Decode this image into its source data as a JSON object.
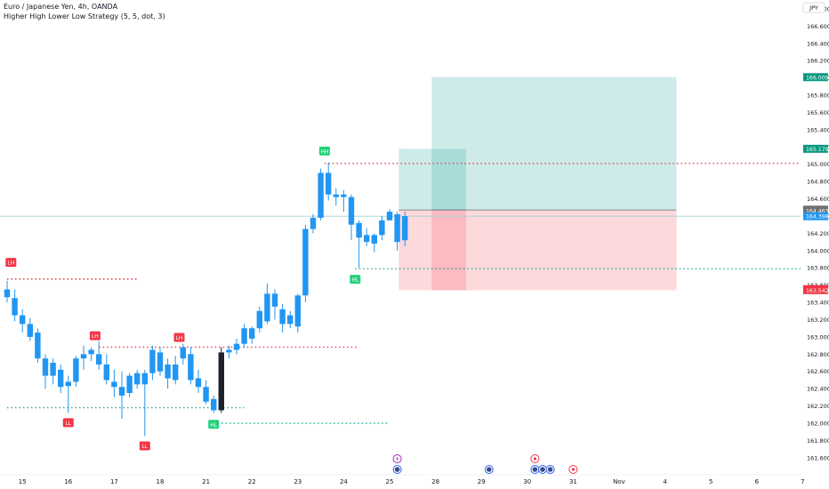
{
  "header": {
    "symbol_line": "Euro / Japanese Yen, 4h, OANDA",
    "indicator_line": "Higher High Lower Low Strategy (5, 5, dot, 3)"
  },
  "currency_button": "JPY",
  "colors": {
    "up_candle": "#2196f3",
    "down_candle": "#2196f3",
    "pivot_label_red": "#f23645",
    "pivot_label_green": "#22d17a",
    "profit_zone": "#26a69a",
    "loss_zone": "#f7525f",
    "resistance_line": "#f23645",
    "support_line": "#22ab94",
    "last_price": "#2196f3"
  },
  "chart_data": {
    "type": "candlestick",
    "ylim": [
      161.52,
      166.84
    ],
    "y_ticks": [
      "166.800",
      "166.600",
      "166.400",
      "166.200",
      "166.000",
      "165.800",
      "165.600",
      "165.400",
      "165.200",
      "165.000",
      "164.800",
      "164.600",
      "164.400",
      "164.200",
      "164.000",
      "163.800",
      "163.600",
      "163.400",
      "163.200",
      "163.000",
      "162.800",
      "162.600",
      "162.400",
      "162.200",
      "162.000",
      "161.800",
      "161.600"
    ],
    "x_ticks": [
      {
        "label": "15",
        "slot": 2
      },
      {
        "label": "16",
        "slot": 8
      },
      {
        "label": "17",
        "slot": 14
      },
      {
        "label": "18",
        "slot": 20
      },
      {
        "label": "21",
        "slot": 26
      },
      {
        "label": "22",
        "slot": 32
      },
      {
        "label": "23",
        "slot": 38
      },
      {
        "label": "24",
        "slot": 44
      },
      {
        "label": "25",
        "slot": 50
      },
      {
        "label": "28",
        "slot": 56
      },
      {
        "label": "29",
        "slot": 62
      },
      {
        "label": "30",
        "slot": 68
      },
      {
        "label": "31",
        "slot": 74
      },
      {
        "label": "Nov",
        "slot": 80
      },
      {
        "label": "4",
        "slot": 86
      },
      {
        "label": "5",
        "slot": 92
      },
      {
        "label": "6",
        "slot": 98
      },
      {
        "label": "7",
        "slot": 104
      }
    ],
    "candles": [
      {
        "o": 163.46,
        "h": 163.65,
        "l": 163.4,
        "c": 163.55
      },
      {
        "o": 163.45,
        "h": 163.55,
        "l": 163.18,
        "c": 163.25
      },
      {
        "o": 163.25,
        "h": 163.32,
        "l": 163.05,
        "c": 163.15
      },
      {
        "o": 163.15,
        "h": 163.22,
        "l": 162.95,
        "c": 163.0
      },
      {
        "o": 163.05,
        "h": 163.1,
        "l": 162.7,
        "c": 162.75
      },
      {
        "o": 162.75,
        "h": 162.8,
        "l": 162.4,
        "c": 162.55
      },
      {
        "o": 162.55,
        "h": 162.75,
        "l": 162.45,
        "c": 162.7
      },
      {
        "o": 162.62,
        "h": 162.68,
        "l": 162.35,
        "c": 162.42
      },
      {
        "o": 162.43,
        "h": 162.55,
        "l": 162.12,
        "c": 162.48
      },
      {
        "o": 162.48,
        "h": 162.78,
        "l": 162.42,
        "c": 162.75
      },
      {
        "o": 162.75,
        "h": 162.9,
        "l": 162.62,
        "c": 162.8
      },
      {
        "o": 162.8,
        "h": 162.88,
        "l": 162.72,
        "c": 162.85
      },
      {
        "o": 162.8,
        "h": 162.95,
        "l": 162.62,
        "c": 162.68
      },
      {
        "o": 162.68,
        "h": 162.8,
        "l": 162.45,
        "c": 162.5
      },
      {
        "o": 162.48,
        "h": 162.62,
        "l": 162.3,
        "c": 162.42
      },
      {
        "o": 162.42,
        "h": 162.6,
        "l": 162.05,
        "c": 162.32
      },
      {
        "o": 162.35,
        "h": 162.58,
        "l": 162.3,
        "c": 162.55
      },
      {
        "o": 162.58,
        "h": 162.62,
        "l": 162.4,
        "c": 162.45
      },
      {
        "o": 162.45,
        "h": 162.62,
        "l": 161.85,
        "c": 162.58
      },
      {
        "o": 162.58,
        "h": 162.9,
        "l": 162.5,
        "c": 162.85
      },
      {
        "o": 162.82,
        "h": 162.88,
        "l": 162.55,
        "c": 162.6
      },
      {
        "o": 162.52,
        "h": 162.75,
        "l": 162.4,
        "c": 162.68
      },
      {
        "o": 162.68,
        "h": 162.78,
        "l": 162.45,
        "c": 162.5
      },
      {
        "o": 162.75,
        "h": 162.92,
        "l": 162.68,
        "c": 162.88
      },
      {
        "o": 162.8,
        "h": 162.88,
        "l": 162.45,
        "c": 162.5
      },
      {
        "o": 162.52,
        "h": 162.62,
        "l": 162.35,
        "c": 162.42
      },
      {
        "o": 162.42,
        "h": 162.5,
        "l": 162.22,
        "c": 162.25
      },
      {
        "o": 162.28,
        "h": 162.32,
        "l": 162.12,
        "c": 162.15
      },
      {
        "o": 162.15,
        "h": 162.88,
        "l": 162.12,
        "c": 162.82
      },
      {
        "o": 162.82,
        "h": 162.9,
        "l": 162.75,
        "c": 162.85
      },
      {
        "o": 162.85,
        "h": 162.98,
        "l": 162.8,
        "c": 162.92
      },
      {
        "o": 162.92,
        "h": 163.15,
        "l": 162.88,
        "c": 163.1
      },
      {
        "o": 162.98,
        "h": 163.12,
        "l": 162.92,
        "c": 163.1
      },
      {
        "o": 163.1,
        "h": 163.35,
        "l": 163.05,
        "c": 163.3
      },
      {
        "o": 163.18,
        "h": 163.62,
        "l": 163.15,
        "c": 163.5
      },
      {
        "o": 163.5,
        "h": 163.55,
        "l": 163.2,
        "c": 163.35
      },
      {
        "o": 163.32,
        "h": 163.38,
        "l": 163.05,
        "c": 163.15
      },
      {
        "o": 163.15,
        "h": 163.3,
        "l": 163.1,
        "c": 163.25
      },
      {
        "o": 163.12,
        "h": 163.5,
        "l": 163.05,
        "c": 163.48
      },
      {
        "o": 163.48,
        "h": 164.3,
        "l": 163.4,
        "c": 164.25
      },
      {
        "o": 164.25,
        "h": 164.42,
        "l": 164.2,
        "c": 164.38
      },
      {
        "o": 164.38,
        "h": 164.95,
        "l": 164.35,
        "c": 164.9
      },
      {
        "o": 164.9,
        "h": 165.02,
        "l": 164.58,
        "c": 164.65
      },
      {
        "o": 164.62,
        "h": 164.72,
        "l": 164.52,
        "c": 164.65
      },
      {
        "o": 164.65,
        "h": 164.7,
        "l": 164.45,
        "c": 164.62
      },
      {
        "o": 164.62,
        "h": 164.65,
        "l": 164.12,
        "c": 164.3
      },
      {
        "o": 164.32,
        "h": 164.35,
        "l": 163.8,
        "c": 164.15
      },
      {
        "o": 164.18,
        "h": 164.26,
        "l": 164.05,
        "c": 164.1
      },
      {
        "o": 164.08,
        "h": 164.2,
        "l": 163.98,
        "c": 164.18
      },
      {
        "o": 164.18,
        "h": 164.4,
        "l": 164.12,
        "c": 164.35
      },
      {
        "o": 164.35,
        "h": 164.48,
        "l": 164.35,
        "c": 164.45
      },
      {
        "o": 164.42,
        "h": 164.45,
        "l": 164.0,
        "c": 164.1
      },
      {
        "o": 164.12,
        "h": 164.45,
        "l": 164.05,
        "c": 164.4
      }
    ],
    "pivot_labels": [
      {
        "text": "LH",
        "slot": 0.5,
        "price": 163.75,
        "pos": "above",
        "color": "red"
      },
      {
        "text": "LH",
        "slot": 11.5,
        "price": 162.9,
        "pos": "above",
        "color": "red"
      },
      {
        "text": "LH",
        "slot": 22.5,
        "price": 162.88,
        "pos": "above",
        "color": "red"
      },
      {
        "text": "LL",
        "slot": 8,
        "price": 162.12,
        "pos": "below",
        "color": "red"
      },
      {
        "text": "LL",
        "slot": 18,
        "price": 161.85,
        "pos": "below",
        "color": "red"
      },
      {
        "text": "HL",
        "slot": 27,
        "price": 162.1,
        "pos": "below",
        "color": "green"
      },
      {
        "text": "HH",
        "slot": 41.5,
        "price": 165.04,
        "pos": "above",
        "color": "green"
      },
      {
        "text": "HL",
        "slot": 45.5,
        "price": 163.78,
        "pos": "below",
        "color": "green"
      }
    ],
    "levels": [
      {
        "price": 163.67,
        "from": 0,
        "to": 17,
        "kind": "resistance"
      },
      {
        "price": 162.88,
        "from": 12,
        "to": 46,
        "kind": "resistance"
      },
      {
        "price": 162.18,
        "from": 0,
        "to": 31,
        "kind": "support"
      },
      {
        "price": 162.0,
        "from": 27,
        "to": 50,
        "kind": "support"
      },
      {
        "price": 165.01,
        "from": 41.5,
        "to": 109,
        "kind": "resistance"
      },
      {
        "price": 163.79,
        "from": 45.5,
        "to": 109,
        "kind": "support"
      }
    ],
    "positions": [
      {
        "from": 51.2,
        "to": 60,
        "entry": 164.47,
        "target": 165.18,
        "stop": 163.54
      },
      {
        "from": 55.5,
        "to": 87.5,
        "entry": 164.47,
        "target": 166.01,
        "stop": 163.54
      }
    ],
    "price_tags": [
      {
        "text": "166.009",
        "price": 166.009,
        "color": "#089981"
      },
      {
        "text": "165.179",
        "price": 165.179,
        "color": "#089981"
      },
      {
        "text": "164.474",
        "price": 164.474,
        "color": "#707070"
      },
      {
        "text": "164.463",
        "price": 164.463,
        "color": "#707070"
      },
      {
        "text": "164.398",
        "price": 164.398,
        "color": "#2196f3"
      },
      {
        "text": "163.553",
        "price": 163.553,
        "color": "#f23645"
      },
      {
        "text": "163.542",
        "price": 163.542,
        "color": "#f23645"
      }
    ],
    "last_price": 164.398,
    "events": [
      {
        "slot": 51,
        "row": 1,
        "kind": "lightning"
      },
      {
        "slot": 51,
        "row": 2,
        "kind": "flag"
      },
      {
        "slot": 63,
        "row": 2,
        "kind": "flag"
      },
      {
        "slot": 69,
        "row": 1,
        "kind": "dot"
      },
      {
        "slot": 69,
        "row": 2,
        "kind": "flag"
      },
      {
        "slot": 70,
        "row": 2,
        "kind": "flag"
      },
      {
        "slot": 71,
        "row": 2,
        "kind": "flag"
      },
      {
        "slot": 74,
        "row": 2,
        "kind": "dot"
      }
    ]
  }
}
